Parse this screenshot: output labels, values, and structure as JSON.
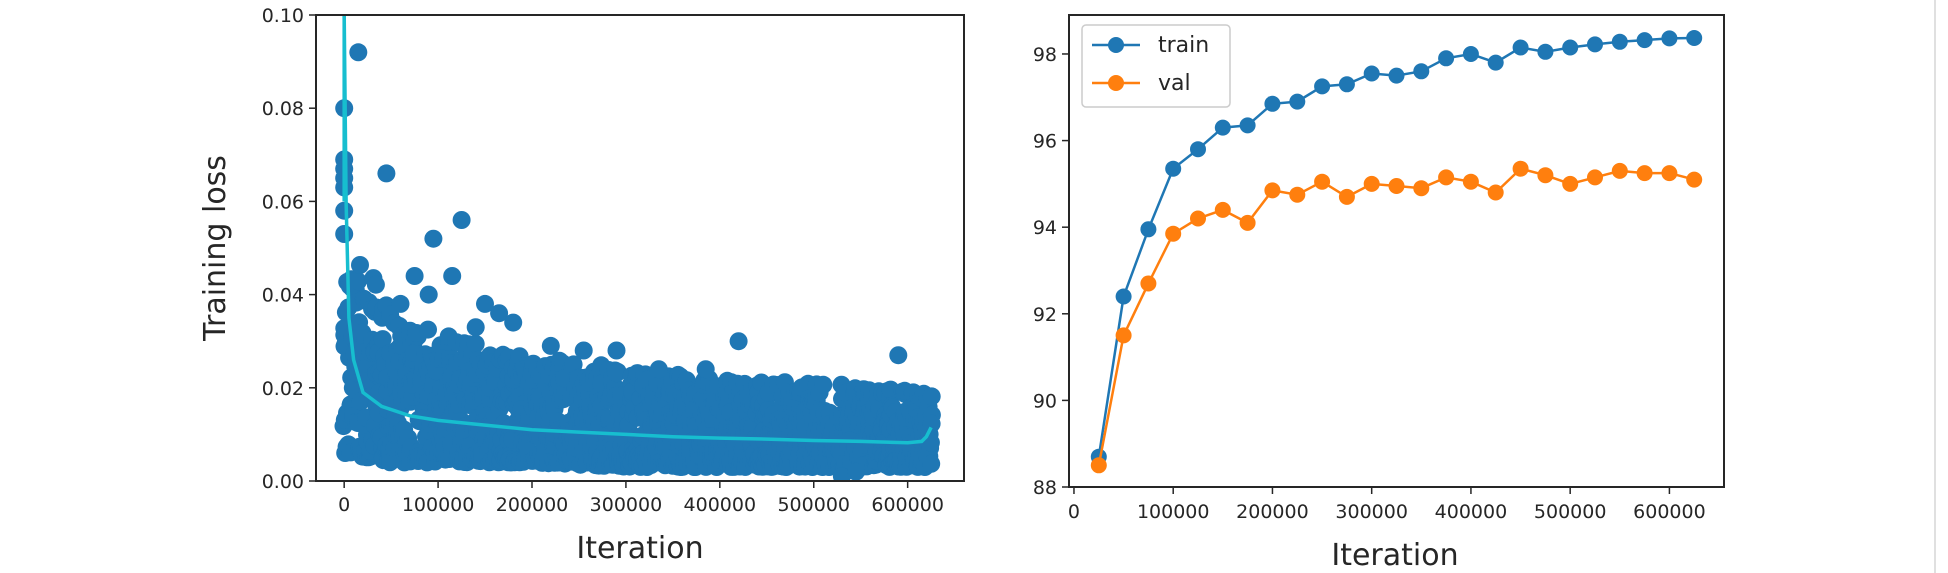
{
  "chart_data": [
    {
      "type": "scatter",
      "title": "",
      "xlabel": "Iteration",
      "ylabel": "Training loss",
      "xlim": [
        -30000,
        660000
      ],
      "ylim": [
        0,
        0.1
      ],
      "grid": false,
      "x_ticks": [
        0,
        100000,
        200000,
        300000,
        400000,
        500000,
        600000
      ],
      "x_tick_labels": [
        "0",
        "100000",
        "200000",
        "300000",
        "400000",
        "500000",
        "600000"
      ],
      "y_ticks": [
        0,
        0.02,
        0.04,
        0.06,
        0.08,
        0.1
      ],
      "y_tick_labels": [
        "0.00",
        "0.02",
        "0.04",
        "0.06",
        "0.08",
        "0.10"
      ],
      "colors": {
        "scatter": "#1f77b4",
        "smoothed_line": "#17becf"
      },
      "series": [
        {
          "kind": "scatter",
          "values_note_free": true,
          "band": {
            "x": [
              0,
              25000,
              50000,
              100000,
              150000,
              200000,
              300000,
              400000,
              500000,
              600000,
              625000
            ],
            "y_low": [
              0.006,
              0.005,
              0.004,
              0.004,
              0.004,
              0.004,
              0.003,
              0.003,
              0.003,
              0.003,
              0.003
            ],
            "y_high": [
              0.048,
              0.046,
              0.036,
              0.032,
              0.029,
              0.027,
              0.024,
              0.022,
              0.021,
              0.02,
              0.02
            ]
          },
          "outliers": [
            [
              15000,
              0.092
            ],
            [
              0,
              0.08
            ],
            [
              0,
              0.069
            ],
            [
              0,
              0.067
            ],
            [
              0,
              0.065
            ],
            [
              0,
              0.063
            ],
            [
              0,
              0.058
            ],
            [
              0,
              0.053
            ],
            [
              45000,
              0.066
            ],
            [
              125000,
              0.056
            ],
            [
              95000,
              0.052
            ],
            [
              115000,
              0.044
            ],
            [
              75000,
              0.044
            ],
            [
              90000,
              0.04
            ],
            [
              150000,
              0.038
            ],
            [
              165000,
              0.036
            ],
            [
              60000,
              0.038
            ],
            [
              140000,
              0.033
            ],
            [
              180000,
              0.034
            ],
            [
              220000,
              0.029
            ],
            [
              255000,
              0.028
            ],
            [
              290000,
              0.028
            ],
            [
              420000,
              0.03
            ],
            [
              590000,
              0.027
            ],
            [
              335000,
              0.024
            ],
            [
              385000,
              0.024
            ],
            [
              530000,
              0.001
            ],
            [
              545000,
              0.002
            ]
          ]
        },
        {
          "kind": "line",
          "x": [
            0,
            2000,
            5000,
            10000,
            20000,
            40000,
            70000,
            100000,
            150000,
            200000,
            250000,
            300000,
            350000,
            400000,
            450000,
            500000,
            550000,
            600000,
            615000,
            620000,
            625000
          ],
          "y": [
            0.1,
            0.06,
            0.035,
            0.026,
            0.019,
            0.016,
            0.014,
            0.013,
            0.012,
            0.011,
            0.0105,
            0.01,
            0.0095,
            0.0092,
            0.009,
            0.0087,
            0.0085,
            0.0082,
            0.0085,
            0.0095,
            0.0115
          ]
        }
      ]
    },
    {
      "type": "line",
      "title": "",
      "xlabel": "Iteration",
      "ylabel": "",
      "xlim": [
        -5000,
        655000
      ],
      "ylim": [
        88,
        98.9
      ],
      "grid": false,
      "legend_position": "top-left",
      "x_ticks": [
        0,
        100000,
        200000,
        300000,
        400000,
        500000,
        600000
      ],
      "x_tick_labels": [
        "0",
        "100000",
        "200000",
        "300000",
        "400000",
        "500000",
        "600000"
      ],
      "y_ticks": [
        88,
        90,
        92,
        94,
        96,
        98
      ],
      "y_tick_labels": [
        "88",
        "90",
        "92",
        "94",
        "96",
        "98"
      ],
      "x": [
        25000,
        50000,
        75000,
        100000,
        125000,
        150000,
        175000,
        200000,
        225000,
        250000,
        275000,
        300000,
        325000,
        350000,
        375000,
        400000,
        425000,
        450000,
        475000,
        500000,
        525000,
        550000,
        575000,
        600000,
        625000
      ],
      "series": [
        {
          "name": "train",
          "color": "#1f77b4",
          "values": [
            88.7,
            92.4,
            93.95,
            95.35,
            95.8,
            96.3,
            96.35,
            96.85,
            96.9,
            97.25,
            97.3,
            97.55,
            97.5,
            97.6,
            97.9,
            98.0,
            97.8,
            98.15,
            98.05,
            98.15,
            98.22,
            98.28,
            98.32,
            98.36,
            98.37
          ]
        },
        {
          "name": "val",
          "color": "#ff7f0e",
          "values": [
            88.5,
            91.5,
            92.7,
            93.85,
            94.2,
            94.4,
            94.1,
            94.85,
            94.75,
            95.05,
            94.7,
            95.0,
            94.95,
            94.9,
            95.15,
            95.05,
            94.8,
            95.35,
            95.2,
            95.0,
            95.15,
            95.3,
            95.25,
            95.25,
            95.1
          ]
        }
      ]
    }
  ]
}
